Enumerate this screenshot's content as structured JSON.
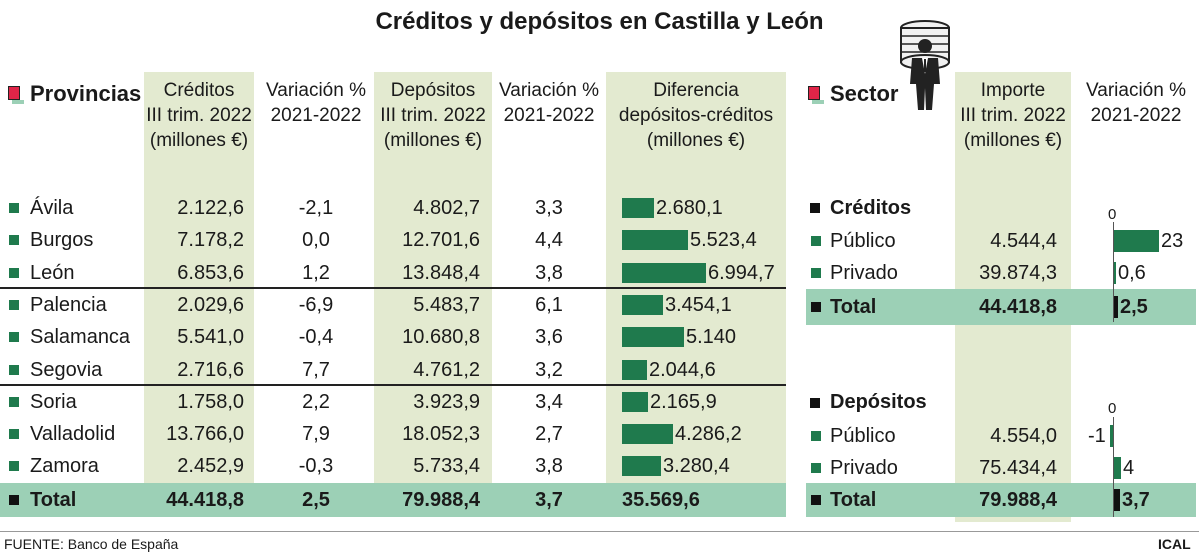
{
  "title": "Créditos y depósitos en Castilla y León",
  "left_table": {
    "heading": "Provincias",
    "columns": [
      [
        "Créditos",
        "III trim. 2022",
        "(millones €)"
      ],
      [
        "Variación %",
        "2021-2022"
      ],
      [
        "Depósitos",
        "III trim. 2022",
        "(millones €)"
      ],
      [
        "Variación %",
        "2021-2022"
      ],
      [
        "Diferencia",
        "depósitos-créditos",
        "(millones €)"
      ]
    ],
    "rows": [
      {
        "name": "Ávila",
        "creditos": "2.122,6",
        "var_cred": "-2,1",
        "depositos": "4.802,7",
        "var_dep": "3,3",
        "diferencia": "2.680,1",
        "dif_value": 2680.1
      },
      {
        "name": "Burgos",
        "creditos": "7.178,2",
        "var_cred": "0,0",
        "depositos": "12.701,6",
        "var_dep": "4,4",
        "diferencia": "5.523,4",
        "dif_value": 5523.4
      },
      {
        "name": "León",
        "creditos": "6.853,6",
        "var_cred": "1,2",
        "depositos": "13.848,4",
        "var_dep": "3,8",
        "diferencia": "6.994,7",
        "dif_value": 6994.7
      },
      {
        "name": "Palencia",
        "creditos": "2.029,6",
        "var_cred": "-6,9",
        "depositos": "5.483,7",
        "var_dep": "6,1",
        "diferencia": "3.454,1",
        "dif_value": 3454.1
      },
      {
        "name": "Salamanca",
        "creditos": "5.541,0",
        "var_cred": "-0,4",
        "depositos": "10.680,8",
        "var_dep": "3,6",
        "diferencia": "5.140",
        "dif_value": 5140
      },
      {
        "name": "Segovia",
        "creditos": "2.716,6",
        "var_cred": "7,7",
        "depositos": "4.761,2",
        "var_dep": "3,2",
        "diferencia": "2.044,6",
        "dif_value": 2044.6
      },
      {
        "name": "Soria",
        "creditos": "1.758,0",
        "var_cred": "2,2",
        "depositos": "3.923,9",
        "var_dep": "3,4",
        "diferencia": "2.165,9",
        "dif_value": 2165.9
      },
      {
        "name": "Valladolid",
        "creditos": "13.766,0",
        "var_cred": "7,9",
        "depositos": "18.052,3",
        "var_dep": "2,7",
        "diferencia": "4.286,2",
        "dif_value": 4286.2
      },
      {
        "name": "Zamora",
        "creditos": "2.452,9",
        "var_cred": "-0,3",
        "depositos": "5.733,4",
        "var_dep": "3,8",
        "diferencia": "3.280,4",
        "dif_value": 3280.4
      }
    ],
    "total": {
      "name": "Total",
      "creditos": "44.418,8",
      "var_cred": "2,5",
      "depositos": "79.988,4",
      "var_dep": "3,7",
      "diferencia": "35.569,6"
    }
  },
  "right_table": {
    "heading": "Sector",
    "columns": [
      [
        "Importe",
        "III trim. 2022",
        "(millones €)"
      ],
      [
        "Variación %",
        "2021-2022"
      ]
    ],
    "creditos": {
      "label": "Créditos",
      "zero_label": "0",
      "rows": [
        {
          "name": "Público",
          "importe": "4.544,4",
          "variacion": "23",
          "var_value": 23
        },
        {
          "name": "Privado",
          "importe": "39.874,3",
          "variacion": "0,6",
          "var_value": 0.6
        }
      ],
      "total": {
        "name": "Total",
        "importe": "44.418,8",
        "variacion": "2,5",
        "var_value": 2.5
      }
    },
    "depositos": {
      "label": "Depósitos",
      "zero_label": "0",
      "rows": [
        {
          "name": "Público",
          "importe": "4.554,0",
          "variacion": "-1",
          "var_value": -1
        },
        {
          "name": "Privado",
          "importe": "75.434,4",
          "variacion": "4",
          "var_value": 4
        }
      ],
      "total": {
        "name": "Total",
        "importe": "79.988,4",
        "variacion": "3,7",
        "var_value": 3.7
      }
    }
  },
  "footer": {
    "source": "FUENTE: Banco de España",
    "brand": "ICAL"
  },
  "colors": {
    "bar": "#1f7a4d",
    "total_band": "#9cd0b6",
    "shade": "#e3ead0",
    "legend_red": "#e02548"
  },
  "chart_data": [
    {
      "type": "bar",
      "title": "Diferencia depósitos-créditos (millones €)",
      "categories": [
        "Ávila",
        "Burgos",
        "León",
        "Palencia",
        "Salamanca",
        "Segovia",
        "Soria",
        "Valladolid",
        "Zamora"
      ],
      "values": [
        2680.1,
        5523.4,
        6994.7,
        3454.1,
        5140,
        2044.6,
        2165.9,
        4286.2,
        3280.4
      ]
    },
    {
      "type": "bar",
      "title": "Créditos - Variación % 2021-2022",
      "categories": [
        "Público",
        "Privado",
        "Total"
      ],
      "values": [
        23,
        0.6,
        2.5
      ]
    },
    {
      "type": "bar",
      "title": "Depósitos - Variación % 2021-2022",
      "categories": [
        "Público",
        "Privado",
        "Total"
      ],
      "values": [
        -1,
        4,
        3.7
      ]
    }
  ]
}
